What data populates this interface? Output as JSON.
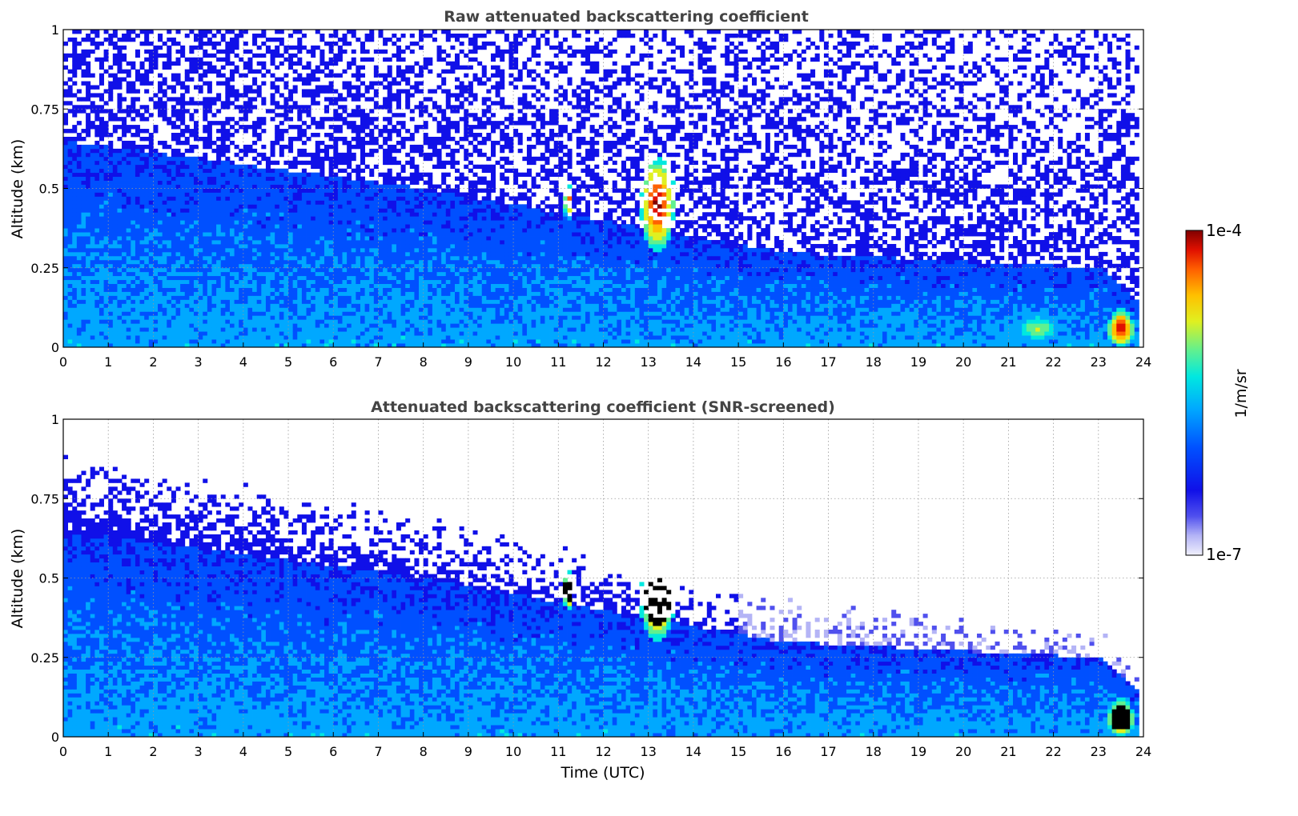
{
  "chart_data": [
    {
      "type": "heatmap",
      "title": "Raw attenuated backscattering coefficient",
      "xlabel": "",
      "ylabel": "Altitude (km)",
      "xlim": [
        0,
        24
      ],
      "ylim": [
        0,
        1
      ],
      "xticks": [
        "0",
        "1",
        "2",
        "3",
        "4",
        "5",
        "6",
        "7",
        "8",
        "9",
        "10",
        "11",
        "12",
        "13",
        "14",
        "15",
        "16",
        "17",
        "18",
        "19",
        "20",
        "21",
        "22",
        "23",
        "24"
      ],
      "yticks": [
        "0",
        "0.25",
        "0.5",
        "0.75",
        "1"
      ],
      "grid": true,
      "colorscale": "jet (white at low end)",
      "features": [
        {
          "kind": "boundary_layer_top",
          "time": [
            0,
            8,
            12,
            16,
            20,
            23.1,
            23.8
          ],
          "altitude": [
            0.65,
            0.5,
            0.4,
            0.3,
            0.27,
            0.25,
            0.15
          ]
        },
        {
          "kind": "cloud",
          "time": [
            11.1,
            11.35
          ],
          "altitude": [
            0.4,
            0.52
          ],
          "level": "high"
        },
        {
          "kind": "cloud",
          "time": [
            12.8,
            13.6
          ],
          "altitude": [
            0.3,
            0.6
          ],
          "level": "very high"
        },
        {
          "kind": "cloud",
          "time": [
            23.2,
            23.8
          ],
          "altitude": [
            0.0,
            0.12
          ],
          "level": "very high"
        },
        {
          "kind": "near_surface_plume",
          "time": [
            21.0,
            22.3
          ],
          "altitude": [
            0.0,
            0.12
          ],
          "level": "moderate"
        }
      ]
    },
    {
      "type": "heatmap",
      "title": "Attenuated backscattering coefficient (SNR-screened)",
      "xlabel": "Time (UTC)",
      "ylabel": "Altitude (km)",
      "xlim": [
        0,
        24
      ],
      "ylim": [
        0,
        1
      ],
      "xticks": [
        "0",
        "1",
        "2",
        "3",
        "4",
        "5",
        "6",
        "7",
        "8",
        "9",
        "10",
        "11",
        "12",
        "13",
        "14",
        "15",
        "16",
        "17",
        "18",
        "19",
        "20",
        "21",
        "22",
        "23",
        "24"
      ],
      "yticks": [
        "0",
        "0.25",
        "0.5",
        "0.75",
        "1"
      ],
      "grid": true,
      "colorscale": "jet (white at low end, black above max)",
      "features": [
        {
          "kind": "boundary_layer_top",
          "time": [
            0,
            8,
            12,
            16,
            20,
            23.1,
            23.8
          ],
          "altitude": [
            0.65,
            0.5,
            0.4,
            0.3,
            0.27,
            0.25,
            0.15
          ]
        },
        {
          "kind": "cloud",
          "time": [
            11.1,
            11.35
          ],
          "altitude": [
            0.4,
            0.52
          ],
          "level": "saturated"
        },
        {
          "kind": "cloud",
          "time": [
            12.8,
            13.6
          ],
          "altitude": [
            0.3,
            0.6
          ],
          "level": "saturated"
        },
        {
          "kind": "cloud",
          "time": [
            23.2,
            23.8
          ],
          "altitude": [
            0.0,
            0.12
          ],
          "level": "saturated"
        }
      ]
    }
  ],
  "colorbar": {
    "label": "1/m/sr",
    "max_label": "1e-4",
    "min_label": "1e-7",
    "scale": "log",
    "colors": [
      "#ececfc",
      "#b4b4f6",
      "#5050ee",
      "#1010e8",
      "#0050ff",
      "#00a8ff",
      "#00e8e0",
      "#60f090",
      "#e0f020",
      "#ffc000",
      "#ff6000",
      "#e01000",
      "#800000"
    ]
  }
}
